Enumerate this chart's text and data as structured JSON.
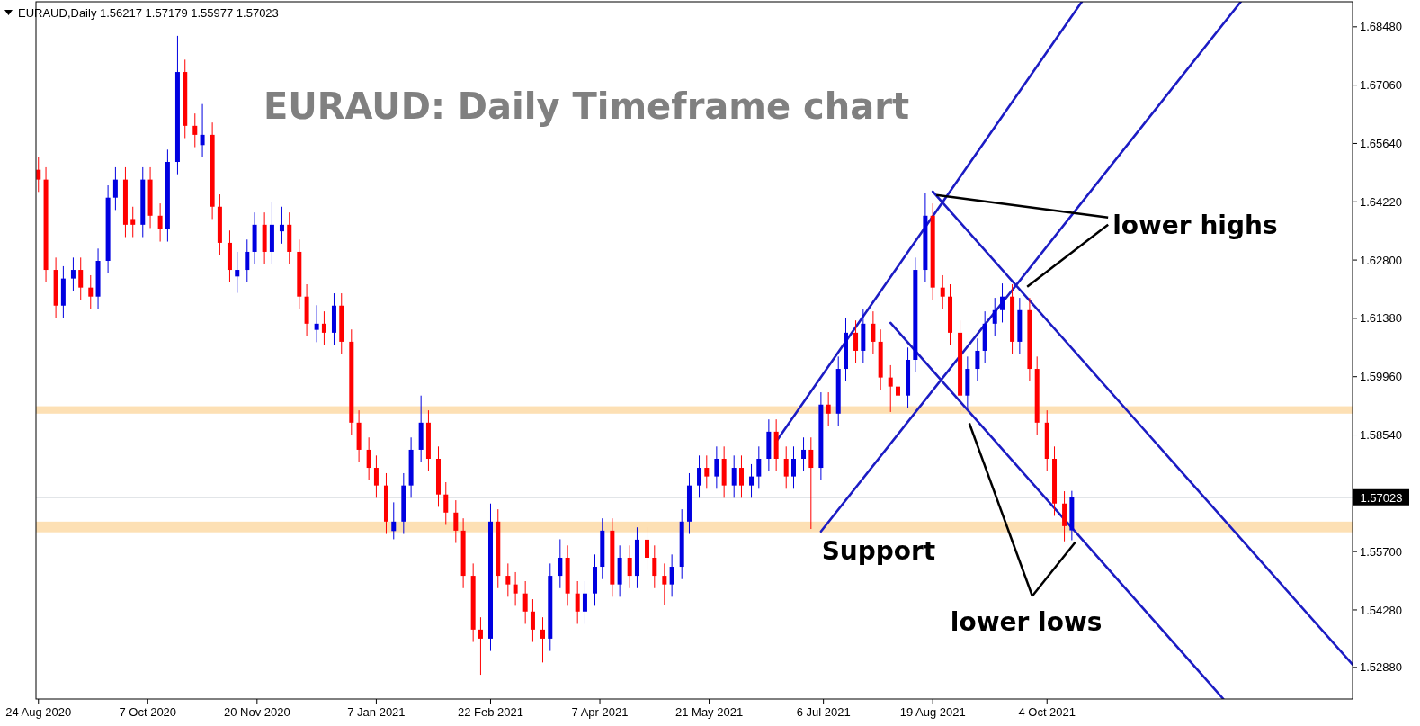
{
  "chart_data": {
    "type": "candlestick",
    "title": "EURAUD: Daily Timeframe chart",
    "subtitle": "EURAUD,Daily 1.56217 1.57179 1.55977 1.57023",
    "xlim": [
      "2020-08-23",
      "2022-02-04"
    ],
    "xticks": [
      {
        "value": "2020-08-24",
        "label": "24 Aug 2020"
      },
      {
        "value": "2020-10-07",
        "label": "7 Oct 2020"
      },
      {
        "value": "2020-11-20",
        "label": "20 Nov 2020"
      },
      {
        "value": "2021-01-07",
        "label": "7 Jan 2021"
      },
      {
        "value": "2021-02-22",
        "label": "22 Feb 2021"
      },
      {
        "value": "2021-04-07",
        "label": "7 Apr 2021"
      },
      {
        "value": "2021-05-21",
        "label": "21 May 2021"
      },
      {
        "value": "2021-07-06",
        "label": "6 Jul 2021"
      },
      {
        "value": "2021-08-19",
        "label": "19 Aug 2021"
      },
      {
        "value": "2021-10-04",
        "label": "4 Oct 2021"
      }
    ],
    "ylim": [
      1.5211,
      1.6909
    ],
    "yticks": [
      {
        "value": 1.5288,
        "label": "1.52880"
      },
      {
        "value": 1.5428,
        "label": "1.54280"
      },
      {
        "value": 1.557,
        "label": "1.55700"
      },
      {
        "value": 1.5854,
        "label": "1.58540"
      },
      {
        "value": 1.5996,
        "label": "1.59960"
      },
      {
        "value": 1.6138,
        "label": "1.61380"
      },
      {
        "value": 1.628,
        "label": "1.62800"
      },
      {
        "value": 1.6422,
        "label": "1.64220"
      },
      {
        "value": 1.6564,
        "label": "1.65640"
      },
      {
        "value": 1.6706,
        "label": "1.67060"
      },
      {
        "value": 1.6848,
        "label": "1.68480"
      }
    ],
    "ref_lines": [
      {
        "axis": "y",
        "value": 1.57023,
        "label": "1.57023",
        "color": "#8a96a3"
      }
    ],
    "bands": [
      {
        "axis": "y",
        "from": 1.5617,
        "to": 1.5643,
        "label": "Support",
        "color": "#fde0b4"
      },
      {
        "axis": "y",
        "from": 1.5906,
        "to": 1.5924,
        "color": "#fde0b4"
      }
    ],
    "annotations": [
      {
        "text": "lower highs",
        "x": "2021-08-19",
        "y": 1.6443
      },
      {
        "text": "lower lows",
        "x": "2021-10-14",
        "y": 1.55977
      }
    ],
    "series": [
      {
        "type": "candlestick",
        "x": [
          "2020-08-24",
          "2020-08-27",
          "2020-08-31",
          "2020-09-03",
          "2020-09-07",
          "2020-09-10",
          "2020-09-14",
          "2020-09-17",
          "2020-09-21",
          "2020-09-24",
          "2020-09-28",
          "2020-10-01",
          "2020-10-05",
          "2020-10-08",
          "2020-10-12",
          "2020-10-15",
          "2020-10-19",
          "2020-10-22",
          "2020-10-26",
          "2020-10-29",
          "2020-11-02",
          "2020-11-05",
          "2020-11-09",
          "2020-11-12",
          "2020-11-16",
          "2020-11-19",
          "2020-11-23",
          "2020-11-26",
          "2020-11-30",
          "2020-12-03",
          "2020-12-07",
          "2020-12-10",
          "2020-12-14",
          "2020-12-17",
          "2020-12-21",
          "2020-12-24",
          "2020-12-28",
          "2020-12-31",
          "2021-01-04",
          "2021-01-07",
          "2021-01-11",
          "2021-01-14",
          "2021-01-18",
          "2021-01-21",
          "2021-01-25",
          "2021-01-28",
          "2021-02-01",
          "2021-02-04",
          "2021-02-08",
          "2021-02-11",
          "2021-02-15",
          "2021-02-18",
          "2021-02-22",
          "2021-02-25",
          "2021-03-01",
          "2021-03-04",
          "2021-03-08",
          "2021-03-11",
          "2021-03-15",
          "2021-03-18",
          "2021-03-22",
          "2021-03-25",
          "2021-03-29",
          "2021-04-01",
          "2021-04-05",
          "2021-04-08",
          "2021-04-12",
          "2021-04-15",
          "2021-04-19",
          "2021-04-22",
          "2021-04-26",
          "2021-04-29",
          "2021-05-03",
          "2021-05-06",
          "2021-05-10",
          "2021-05-13",
          "2021-05-17",
          "2021-05-20",
          "2021-05-24",
          "2021-05-27",
          "2021-05-31",
          "2021-06-03",
          "2021-06-07",
          "2021-06-10",
          "2021-06-14",
          "2021-06-17",
          "2021-06-21",
          "2021-06-24",
          "2021-06-28",
          "2021-07-01",
          "2021-07-05",
          "2021-07-08",
          "2021-07-12",
          "2021-07-15",
          "2021-07-19",
          "2021-07-22",
          "2021-07-26",
          "2021-07-29",
          "2021-08-02",
          "2021-08-05",
          "2021-08-09",
          "2021-08-12",
          "2021-08-16",
          "2021-08-19",
          "2021-08-23",
          "2021-08-26",
          "2021-08-30",
          "2021-09-02",
          "2021-09-06",
          "2021-09-09",
          "2021-09-13",
          "2021-09-16",
          "2021-09-20",
          "2021-09-23",
          "2021-09-27",
          "2021-09-30",
          "2021-10-04",
          "2021-10-07",
          "2021-10-11",
          "2021-10-14"
        ],
        "ohlc": [
          [
            1.65,
            1.653,
            1.6446,
            1.6476
          ],
          [
            1.6476,
            1.6506,
            1.6226,
            1.6256
          ],
          [
            1.6256,
            1.6286,
            1.6139,
            1.6169
          ],
          [
            1.6169,
            1.6265,
            1.6139,
            1.6235
          ],
          [
            1.6235,
            1.6286,
            1.6205,
            1.6256
          ],
          [
            1.6256,
            1.6286,
            1.6183,
            1.6213
          ],
          [
            1.6213,
            1.6243,
            1.6161,
            1.6191
          ],
          [
            1.6191,
            1.6308,
            1.6161,
            1.6278
          ],
          [
            1.6278,
            1.6462,
            1.6248,
            1.6432
          ],
          [
            1.6432,
            1.6506,
            1.6402,
            1.6476
          ],
          [
            1.6476,
            1.6506,
            1.6336,
            1.6366
          ],
          [
            1.638,
            1.641,
            1.6336,
            1.6366
          ],
          [
            1.6366,
            1.6506,
            1.6336,
            1.6476
          ],
          [
            1.6476,
            1.6506,
            1.6358,
            1.6388
          ],
          [
            1.6388,
            1.6418,
            1.6325,
            1.6355
          ],
          [
            1.6355,
            1.6549,
            1.6325,
            1.6519
          ],
          [
            1.6519,
            1.6826,
            1.6489,
            1.6738
          ],
          [
            1.6738,
            1.6768,
            1.6577,
            1.6607
          ],
          [
            1.6607,
            1.6637,
            1.6555,
            1.6585
          ],
          [
            1.656,
            1.666,
            1.653,
            1.6585
          ],
          [
            1.6585,
            1.6615,
            1.638,
            1.641
          ],
          [
            1.641,
            1.644,
            1.6292,
            1.6322
          ],
          [
            1.6322,
            1.6352,
            1.6226,
            1.6256
          ],
          [
            1.624,
            1.63,
            1.62,
            1.6256
          ],
          [
            1.6256,
            1.633,
            1.6226,
            1.63
          ],
          [
            1.63,
            1.6396,
            1.627,
            1.6366
          ],
          [
            1.6366,
            1.6396,
            1.627,
            1.63
          ],
          [
            1.63,
            1.6422,
            1.627,
            1.6366
          ],
          [
            1.635,
            1.641,
            1.632,
            1.6366
          ],
          [
            1.6366,
            1.6396,
            1.627,
            1.63
          ],
          [
            1.63,
            1.633,
            1.6161,
            1.6191
          ],
          [
            1.6191,
            1.6221,
            1.6095,
            1.6125
          ],
          [
            1.611,
            1.617,
            1.608,
            1.6125
          ],
          [
            1.6125,
            1.6155,
            1.6073,
            1.6103
          ],
          [
            1.6103,
            1.6199,
            1.6073,
            1.6169
          ],
          [
            1.6169,
            1.6199,
            1.6051,
            1.6081
          ],
          [
            1.6081,
            1.6111,
            1.5854,
            1.5884
          ],
          [
            1.5884,
            1.5914,
            1.5788,
            1.5818
          ],
          [
            1.5818,
            1.5848,
            1.5744,
            1.5774
          ],
          [
            1.5774,
            1.5804,
            1.5701,
            1.5731
          ],
          [
            1.5731,
            1.5761,
            1.5613,
            1.5643
          ],
          [
            1.562,
            1.569,
            1.56,
            1.5643
          ],
          [
            1.5643,
            1.5761,
            1.5613,
            1.5731
          ],
          [
            1.5731,
            1.5848,
            1.5701,
            1.5818
          ],
          [
            1.5818,
            1.595,
            1.5788,
            1.5884
          ],
          [
            1.5884,
            1.5914,
            1.5766,
            1.5796
          ],
          [
            1.5796,
            1.5826,
            1.5679,
            1.5709
          ],
          [
            1.5709,
            1.5739,
            1.5635,
            1.5665
          ],
          [
            1.5665,
            1.5695,
            1.5591,
            1.5621
          ],
          [
            1.5621,
            1.5651,
            1.5481,
            1.5511
          ],
          [
            1.5511,
            1.5541,
            1.535,
            1.538
          ],
          [
            1.538,
            1.541,
            1.527,
            1.5358
          ],
          [
            1.5358,
            1.5687,
            1.5328,
            1.5643
          ],
          [
            1.5643,
            1.5673,
            1.5481,
            1.5511
          ],
          [
            1.5511,
            1.5541,
            1.546,
            1.549
          ],
          [
            1.549,
            1.552,
            1.5438,
            1.5468
          ],
          [
            1.5468,
            1.5498,
            1.5394,
            1.5424
          ],
          [
            1.5424,
            1.5454,
            1.535,
            1.538
          ],
          [
            1.538,
            1.541,
            1.53,
            1.5358
          ],
          [
            1.5358,
            1.5541,
            1.5328,
            1.5511
          ],
          [
            1.5511,
            1.56,
            1.5481,
            1.5555
          ],
          [
            1.5555,
            1.5585,
            1.5438,
            1.5468
          ],
          [
            1.5468,
            1.5498,
            1.5394,
            1.5424
          ],
          [
            1.5424,
            1.5498,
            1.5394,
            1.5468
          ],
          [
            1.5468,
            1.5563,
            1.5438,
            1.5533
          ],
          [
            1.5533,
            1.5651,
            1.5503,
            1.5621
          ],
          [
            1.5621,
            1.5651,
            1.546,
            1.549
          ],
          [
            1.549,
            1.5585,
            1.546,
            1.5555
          ],
          [
            1.5555,
            1.5585,
            1.5481,
            1.5511
          ],
          [
            1.5511,
            1.5629,
            1.5481,
            1.5599
          ],
          [
            1.5599,
            1.5629,
            1.5525,
            1.5555
          ],
          [
            1.5555,
            1.5585,
            1.5481,
            1.5511
          ],
          [
            1.5511,
            1.5541,
            1.544,
            1.549
          ],
          [
            1.549,
            1.5563,
            1.546,
            1.5533
          ],
          [
            1.5533,
            1.5673,
            1.5503,
            1.5643
          ],
          [
            1.5643,
            1.5761,
            1.5613,
            1.5731
          ],
          [
            1.5731,
            1.5804,
            1.5701,
            1.5774
          ],
          [
            1.5774,
            1.5804,
            1.5723,
            1.5753
          ],
          [
            1.5753,
            1.5826,
            1.5723,
            1.5796
          ],
          [
            1.5796,
            1.5826,
            1.5701,
            1.5731
          ],
          [
            1.5731,
            1.5804,
            1.5701,
            1.5774
          ],
          [
            1.5774,
            1.5804,
            1.5701,
            1.5731
          ],
          [
            1.5731,
            1.5783,
            1.5701,
            1.5753
          ],
          [
            1.5753,
            1.5826,
            1.5723,
            1.5796
          ],
          [
            1.5796,
            1.5892,
            1.5766,
            1.5862
          ],
          [
            1.5862,
            1.5892,
            1.5766,
            1.5796
          ],
          [
            1.5796,
            1.5826,
            1.5723,
            1.5753
          ],
          [
            1.5753,
            1.5826,
            1.5723,
            1.5796
          ],
          [
            1.5796,
            1.5848,
            1.5766,
            1.5818
          ],
          [
            1.5818,
            1.5848,
            1.5625,
            1.5774
          ],
          [
            1.5774,
            1.5958,
            1.5744,
            1.5928
          ],
          [
            1.5928,
            1.5958,
            1.5876,
            1.5906
          ],
          [
            1.5906,
            1.6045,
            1.5876,
            1.6015
          ],
          [
            1.6015,
            1.614,
            1.5985,
            1.6103
          ],
          [
            1.6103,
            1.6133,
            1.6029,
            1.6059
          ],
          [
            1.6059,
            1.616,
            1.6029,
            1.6125
          ],
          [
            1.6125,
            1.6155,
            1.6051,
            1.6081
          ],
          [
            1.6081,
            1.6111,
            1.5964,
            1.5994
          ],
          [
            1.5994,
            1.6024,
            1.591,
            1.5972
          ],
          [
            1.5972,
            1.6002,
            1.591,
            1.595
          ],
          [
            1.595,
            1.6067,
            1.592,
            1.6037
          ],
          [
            1.6037,
            1.6286,
            1.6007,
            1.6256
          ],
          [
            1.6256,
            1.6443,
            1.6226,
            1.6388
          ],
          [
            1.6388,
            1.6418,
            1.6183,
            1.6213
          ],
          [
            1.6213,
            1.6243,
            1.6161,
            1.6191
          ],
          [
            1.6191,
            1.6221,
            1.6073,
            1.6103
          ],
          [
            1.6103,
            1.6133,
            1.591,
            1.595
          ],
          [
            1.595,
            1.6045,
            1.592,
            1.6015
          ],
          [
            1.6015,
            1.6089,
            1.5985,
            1.6059
          ],
          [
            1.6059,
            1.6155,
            1.6029,
            1.6125
          ],
          [
            1.6125,
            1.6188,
            1.6095,
            1.6158
          ],
          [
            1.6158,
            1.6223,
            1.6128,
            1.6191
          ],
          [
            1.6191,
            1.6221,
            1.6051,
            1.6081
          ],
          [
            1.6081,
            1.6188,
            1.6051,
            1.6158
          ],
          [
            1.6158,
            1.6188,
            1.5985,
            1.6015
          ],
          [
            1.6015,
            1.6045,
            1.5854,
            1.5884
          ],
          [
            1.5884,
            1.5914,
            1.5766,
            1.5796
          ],
          [
            1.5796,
            1.5826,
            1.5657,
            1.5687
          ],
          [
            1.5687,
            1.5717,
            1.5595,
            1.5632
          ],
          [
            1.56217,
            1.57179,
            1.55977,
            1.57023
          ]
        ]
      },
      {
        "type": "line",
        "color": "#1c1cc4",
        "x": [
          "2021-06-17",
          "2021-10-18"
        ],
        "values": [
          1.5838,
          1.6909
        ]
      },
      {
        "type": "line",
        "color": "#1c1cc4",
        "x": [
          "2021-07-05",
          "2021-12-21"
        ],
        "values": [
          1.5619,
          1.6909
        ]
      },
      {
        "type": "line",
        "color": "#1c1cc4",
        "x": [
          "2021-08-19",
          "2022-02-04"
        ],
        "values": [
          1.6447,
          1.5295
        ]
      },
      {
        "type": "line",
        "color": "#1c1cc4",
        "x": [
          "2021-08-02",
          "2021-12-14"
        ],
        "values": [
          1.6127,
          1.5211
        ]
      }
    ]
  }
}
